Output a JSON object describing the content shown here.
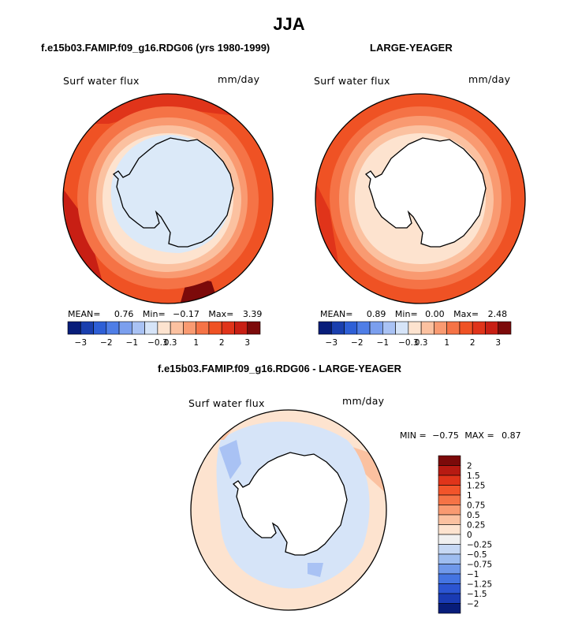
{
  "season_title": "JJA",
  "variable_label": "Surf water flux",
  "units": "mm/day",
  "colors": {
    "red1": "#fde3cf",
    "red2": "#fbc1a0",
    "red3": "#f99a71",
    "red4": "#f57346",
    "red5": "#ef5224",
    "red6": "#e0341a",
    "red7": "#c81f14",
    "red8": "#7c0a0a",
    "ice_tint": "#dbe9f8",
    "land": "#ffffff",
    "outline": "#000000"
  },
  "panels": [
    {
      "title": "f.e15b03.FAMIP.f09_g16.RDG06 (yrs 1980-1999)",
      "stats": {
        "mean_label": "MEAN=",
        "mean": "0.76",
        "min_label": "Min=",
        "min": "−0.17",
        "max_label": "Max=",
        "max": "3.39"
      }
    },
    {
      "title": "LARGE-YEAGER",
      "stats": {
        "mean_label": "MEAN=",
        "mean": "0.89",
        "min_label": "Min=",
        "min": "0.00",
        "max_label": "Max=",
        "max": "2.48"
      }
    }
  ],
  "top_colorbar": {
    "colors": [
      "#081d7a",
      "#1a3fae",
      "#2e5fd6",
      "#4f7ee6",
      "#7b9fee",
      "#a9c2f4",
      "#d6e4f8",
      "#fde3cf",
      "#fbc1a0",
      "#f99a71",
      "#f57346",
      "#ef5224",
      "#e0341a",
      "#c81f14",
      "#7c0a0a"
    ],
    "tick_labels": [
      "−3",
      "−2",
      "−1",
      "−0.3",
      "0.3",
      "1",
      "2",
      "3"
    ]
  },
  "difference_panel": {
    "title": "f.e15b03.FAMIP.f09_g16.RDG06 - LARGE-YEAGER",
    "min_label": "MIN =",
    "min": "−0.75",
    "max_label": "MAX =",
    "max": "0.87"
  },
  "diff_colorbar": {
    "colors": [
      "#7c0a0a",
      "#b71a12",
      "#e0341a",
      "#f2542a",
      "#f57346",
      "#f99a71",
      "#fbc1a0",
      "#fde3cf",
      "#f0f0f0",
      "#c6d8f4",
      "#9ebdf0",
      "#6f98ea",
      "#4474e2",
      "#2c55d2",
      "#1a3bb4",
      "#081d7a"
    ],
    "tick_labels": [
      "2",
      "1.5",
      "1.25",
      "1",
      "0.75",
      "0.5",
      "0.25",
      "0",
      "−0.25",
      "−0.5",
      "−0.75",
      "−1",
      "−1.25",
      "−1.5",
      "−2"
    ]
  }
}
